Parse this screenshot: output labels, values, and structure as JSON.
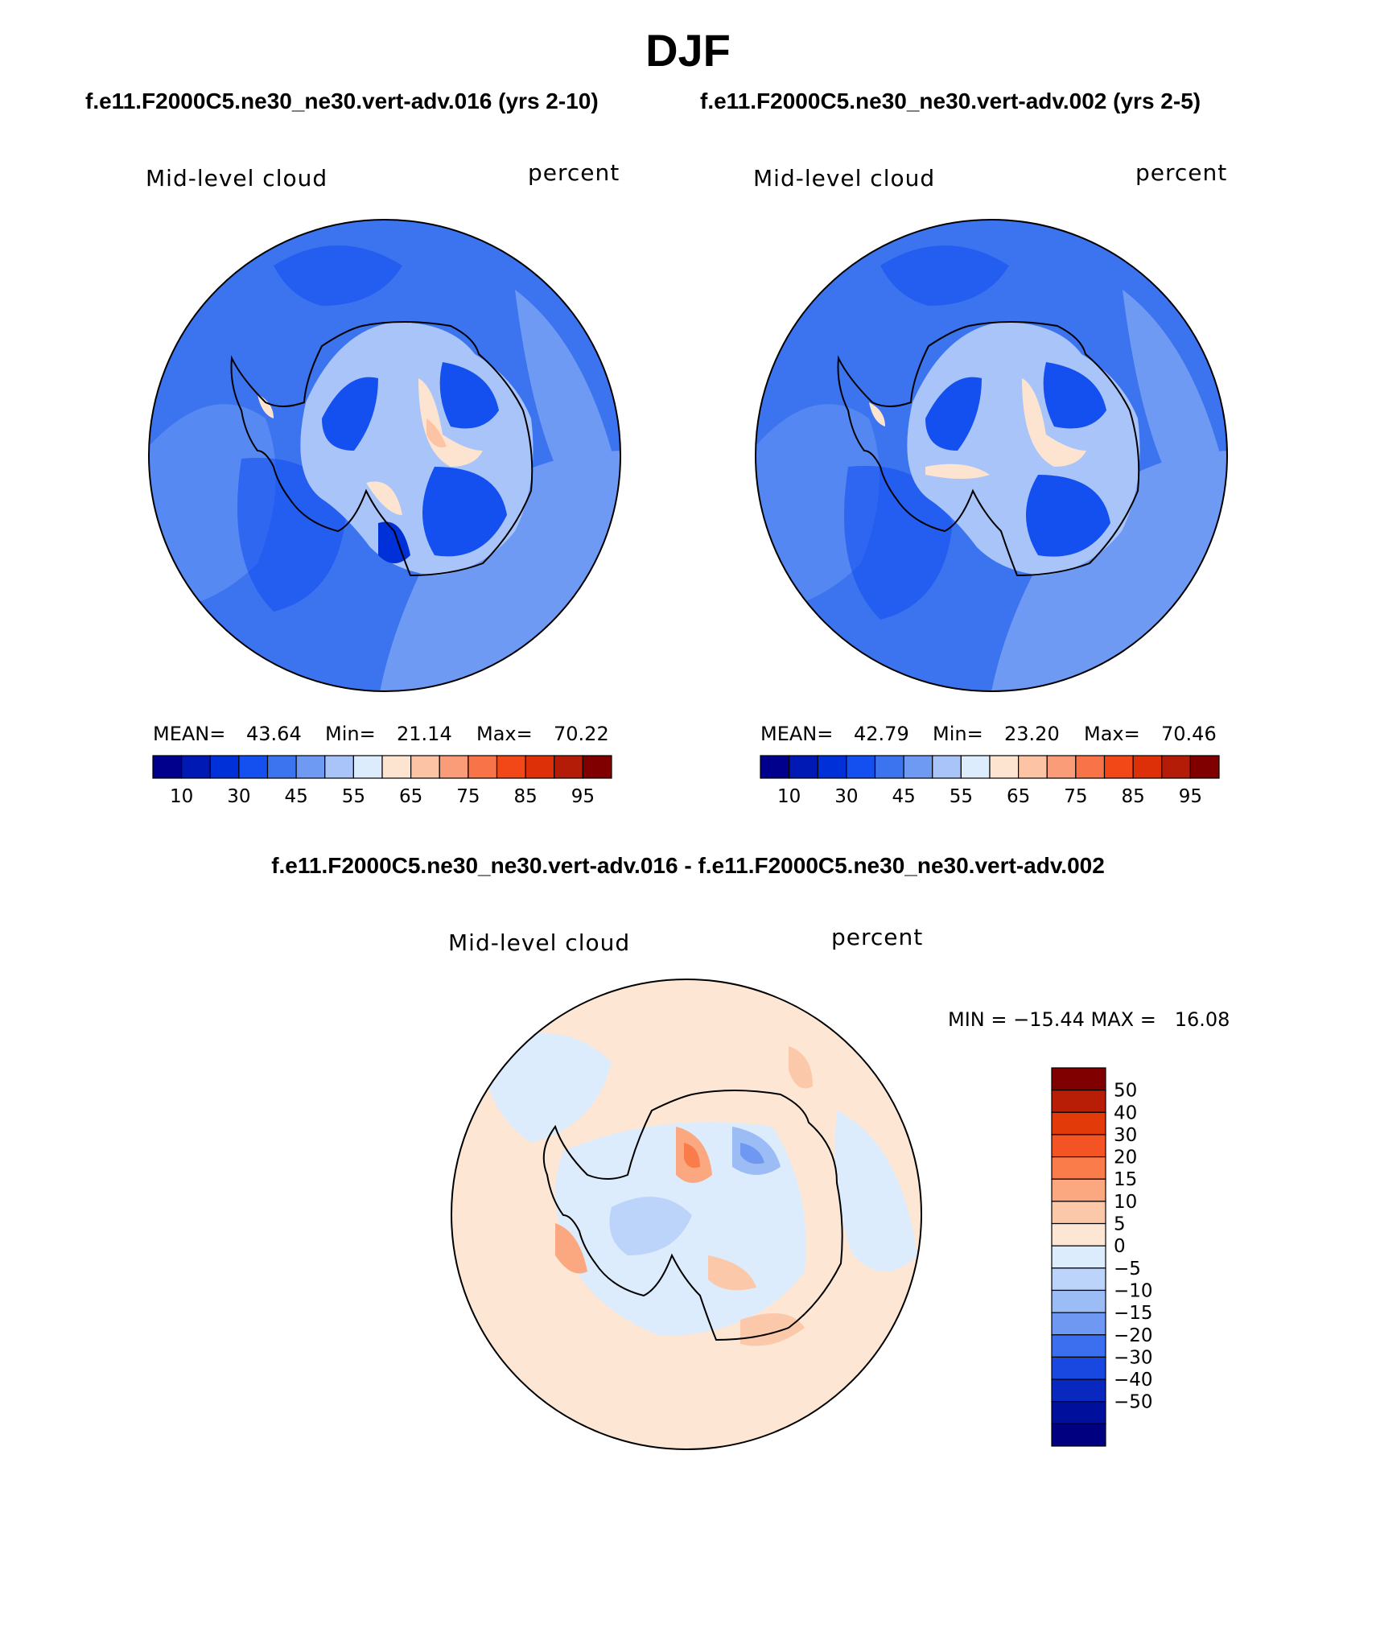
{
  "title": "DJF",
  "panels": [
    {
      "case_title": "f.e11.F2000C5.ne30_ne30.vert-adv.016 (yrs 2-10)",
      "variable": "Mid-level cloud",
      "units": "percent",
      "stats": {
        "mean_label": "MEAN=",
        "mean": "43.64",
        "min_label": "Min=",
        "min": "21.14",
        "max_label": "Max=",
        "max": "70.22"
      }
    },
    {
      "case_title": "f.e11.F2000C5.ne30_ne30.vert-adv.002 (yrs 2-5)",
      "variable": "Mid-level cloud",
      "units": "percent",
      "stats": {
        "mean_label": "MEAN=",
        "mean": "42.79",
        "min_label": "Min=",
        "min": "23.20",
        "max_label": "Max=",
        "max": "70.46"
      }
    }
  ],
  "diff_panel": {
    "title": "f.e11.F2000C5.ne30_ne30.vert-adv.016 - f.e11.F2000C5.ne30_ne30.vert-adv.002",
    "variable": "Mid-level cloud",
    "units": "percent",
    "minmax": "MIN = −15.44 MAX =   16.08"
  },
  "colorbar_main": {
    "colors": [
      "#00008c",
      "#0018b4",
      "#0030d8",
      "#1450f0",
      "#3c74f0",
      "#6e9af4",
      "#a8c4f8",
      "#dcecfc",
      "#fde4d0",
      "#fcc4a4",
      "#fa9c78",
      "#f87448",
      "#f24818",
      "#de3008",
      "#b41c08",
      "#800000"
    ],
    "tick_labels": [
      "10",
      "30",
      "45",
      "55",
      "65",
      "75",
      "85",
      "95"
    ]
  },
  "colorbar_diff": {
    "colors": [
      "#800000",
      "#b81e06",
      "#e23a08",
      "#f45424",
      "#fa7c4a",
      "#fba880",
      "#fcc8aa",
      "#fde6d4",
      "#dcecfc",
      "#bcd4fa",
      "#9cbcf6",
      "#6e98f2",
      "#3c6ef0",
      "#1848e0",
      "#0828c0",
      "#00109c",
      "#000080"
    ],
    "tick_labels": [
      "50",
      "40",
      "30",
      "20",
      "15",
      "10",
      "5",
      "0",
      "−5",
      "−10",
      "−15",
      "−20",
      "−30",
      "−40",
      "−50"
    ]
  }
}
